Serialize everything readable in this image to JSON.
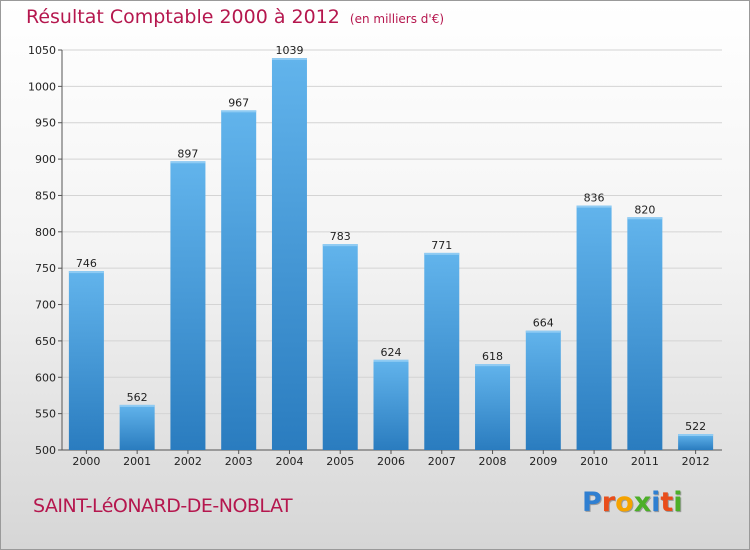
{
  "header": {
    "title": "Résultat Comptable 2000 à 2012",
    "subtitle": "(en milliers d'€)"
  },
  "footer": {
    "commune": "SAINT-LéONARD-DE-NOBLAT",
    "logo_letters": [
      "P",
      "r",
      "o",
      "x",
      "i",
      "t",
      "i"
    ],
    "logo_colors": [
      "#2f7fd1",
      "#e94e1b",
      "#f5a300",
      "#4caf28",
      "#2f7fd1",
      "#e94e1b",
      "#4caf28"
    ]
  },
  "colors": {
    "bar_light": "#62b4ec",
    "bar_dark": "#2a7cbf",
    "accent": "#b5174e"
  },
  "chart_data": {
    "type": "bar",
    "title": "Résultat Comptable 2000 à 2012",
    "xlabel": "",
    "ylabel": "(en milliers d'€)",
    "categories": [
      "2000",
      "2001",
      "2002",
      "2003",
      "2004",
      "2005",
      "2006",
      "2007",
      "2008",
      "2009",
      "2010",
      "2011",
      "2012"
    ],
    "values": [
      746,
      562,
      897,
      967,
      1039,
      783,
      624,
      771,
      618,
      664,
      836,
      820,
      522
    ],
    "ylim": [
      500,
      1050
    ],
    "yticks": [
      500,
      550,
      600,
      650,
      700,
      750,
      800,
      850,
      900,
      950,
      1000,
      1050
    ],
    "grid": true
  }
}
